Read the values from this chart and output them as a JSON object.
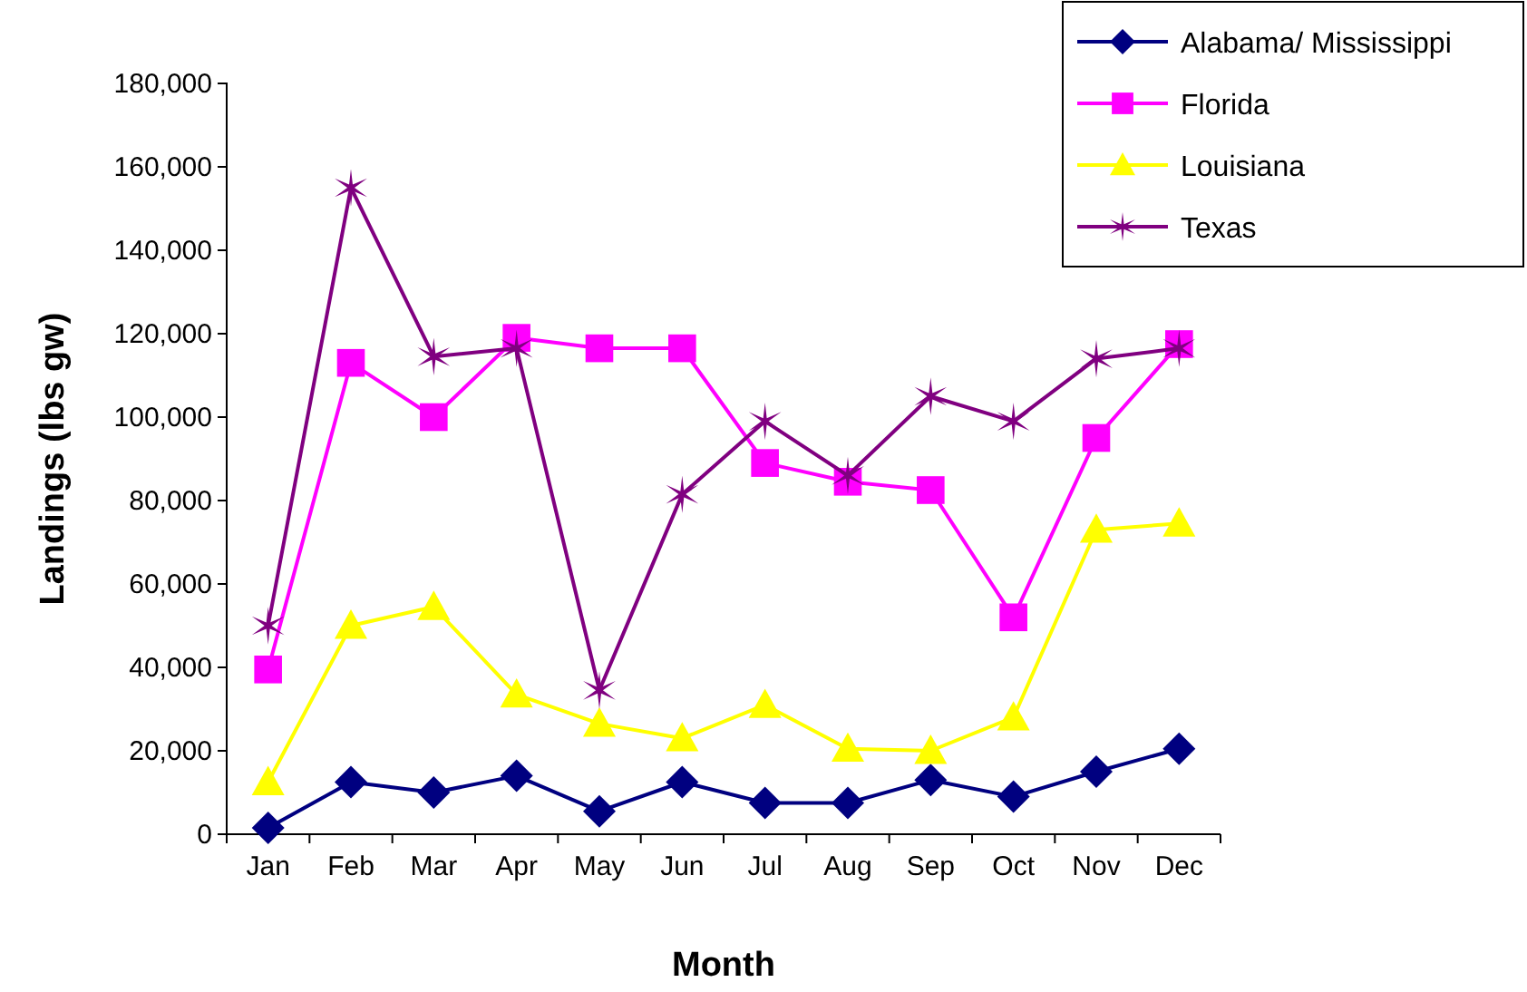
{
  "chart_data": {
    "type": "line",
    "xlabel": "Month",
    "ylabel": "Landings (lbs gw)",
    "categories": [
      "Jan",
      "Feb",
      "Mar",
      "Apr",
      "May",
      "Jun",
      "Jul",
      "Aug",
      "Sep",
      "Oct",
      "Nov",
      "Dec"
    ],
    "ylim": [
      0,
      180000
    ],
    "yticks": [
      {
        "value": 0,
        "label": "0"
      },
      {
        "value": 20000,
        "label": "20,000"
      },
      {
        "value": 40000,
        "label": "40,000"
      },
      {
        "value": 60000,
        "label": "60,000"
      },
      {
        "value": 80000,
        "label": "80,000"
      },
      {
        "value": 100000,
        "label": "100,000"
      },
      {
        "value": 120000,
        "label": "120,000"
      },
      {
        "value": 140000,
        "label": "140,000"
      },
      {
        "value": 160000,
        "label": "160,000"
      },
      {
        "value": 180000,
        "label": "180,000"
      }
    ],
    "grid": false,
    "legend": "top right",
    "series": [
      {
        "name": "Alabama/ Mississippi",
        "color": "#000080",
        "marker": "diamond",
        "values": [
          1500,
          12500,
          10000,
          14000,
          5500,
          12500,
          7500,
          7500,
          13000,
          9000,
          15000,
          20500
        ]
      },
      {
        "name": "Florida",
        "color": "#ff00ff",
        "marker": "square",
        "values": [
          39500,
          113000,
          100000,
          119000,
          116500,
          116500,
          89000,
          84500,
          82500,
          52000,
          95000,
          117500
        ]
      },
      {
        "name": "Louisiana",
        "color": "#ffff00",
        "marker": "triangle",
        "values": [
          12500,
          50000,
          54500,
          33500,
          26500,
          23000,
          31000,
          20500,
          20000,
          28000,
          73000,
          74500
        ]
      },
      {
        "name": "Texas",
        "color": "#800080",
        "marker": "cross",
        "values": [
          50000,
          155000,
          114500,
          116500,
          34500,
          81500,
          99000,
          86000,
          105000,
          99000,
          114000,
          116500
        ]
      }
    ]
  }
}
